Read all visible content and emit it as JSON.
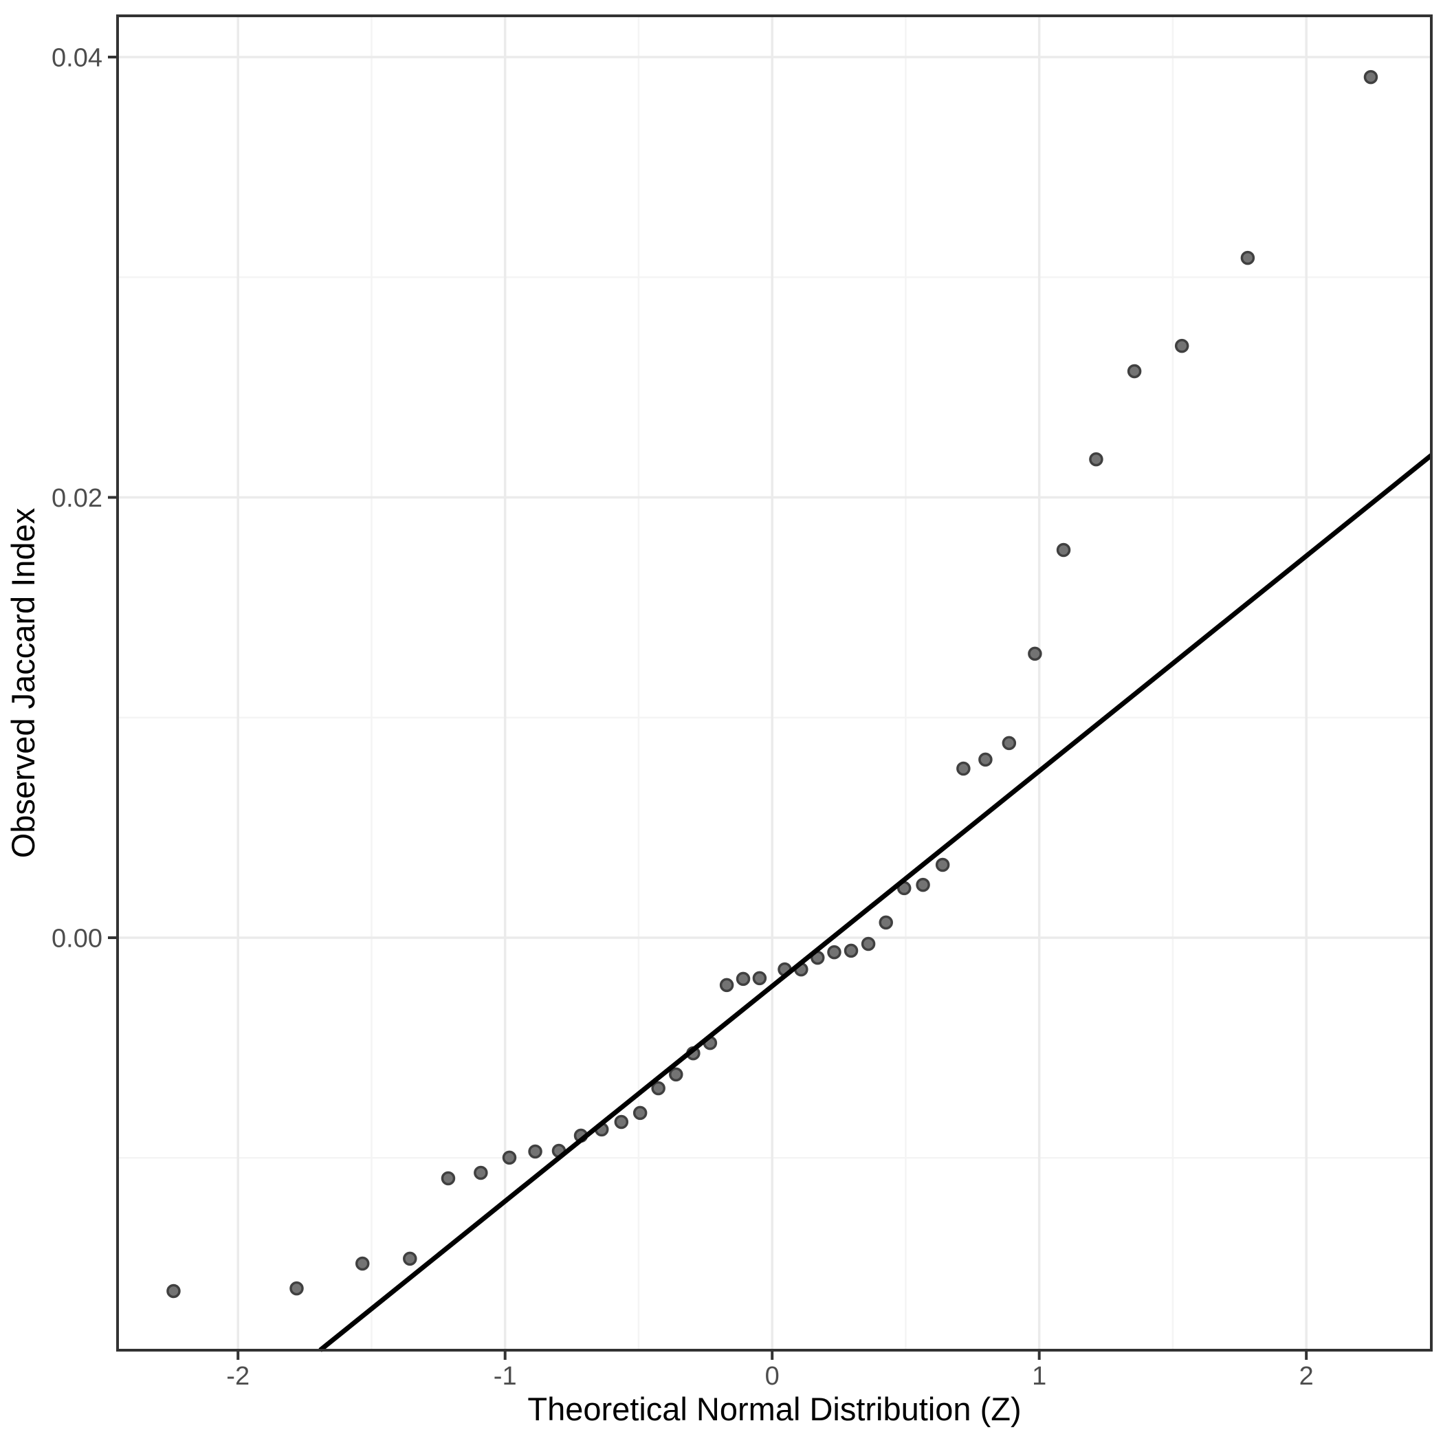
{
  "chart_data": {
    "type": "scatter",
    "title": "",
    "xlabel": "Theoretical Normal Distribution (Z)",
    "ylabel": "Observed Jaccard Index",
    "xlim": [
      -2.451,
      2.468
    ],
    "ylim": [
      -0.018736,
      0.041874
    ],
    "grid": "major+minor",
    "legend_position": "none",
    "x_major_ticks": [
      -2,
      -1,
      0,
      1,
      2
    ],
    "x_tick_labels": [
      "-2",
      "-1",
      "0",
      "1",
      "2"
    ],
    "x_minor_ticks": [
      -1.5,
      -0.5,
      0.5,
      1.5
    ],
    "y_major_ticks": [
      0,
      0.02,
      0.04
    ],
    "y_tick_labels": [
      "0.00",
      "0.02",
      "0.04"
    ],
    "y_minor_ticks": [
      -0.01,
      0.01,
      0.03
    ],
    "series": [
      {
        "name": "observed-quantiles",
        "type": "points",
        "x": [
          -2.2414,
          -1.7805,
          -1.5341,
          -1.3563,
          -1.213,
          -1.091,
          -0.9838,
          -0.8871,
          -0.7985,
          -0.716,
          -0.6383,
          -0.5647,
          -0.4943,
          -0.4261,
          -0.3601,
          -0.2956,
          -0.2324,
          -0.1701,
          -0.1085,
          -0.0471,
          0.0471,
          0.1085,
          0.1701,
          0.2324,
          0.2956,
          0.3601,
          0.4261,
          0.4943,
          0.5647,
          0.6383,
          0.716,
          0.7985,
          0.8871,
          0.9838,
          1.091,
          1.213,
          1.3563,
          1.5341,
          1.7805,
          2.2414
        ],
        "y": [
          -0.01605,
          -0.01593,
          -0.0148,
          -0.01458,
          -0.01093,
          -0.01068,
          -0.00999,
          -0.00971,
          -0.00968,
          -0.00899,
          -0.00871,
          -0.00837,
          -0.00796,
          -0.00684,
          -0.00621,
          -0.00525,
          -0.00478,
          -0.00215,
          -0.00187,
          -0.00184,
          -0.00144,
          -0.00144,
          -0.00091,
          -0.00066,
          -0.00059,
          -0.00028,
          0.00069,
          0.00225,
          0.0024,
          0.00331,
          0.00768,
          0.00809,
          0.00884,
          0.0129,
          0.01761,
          0.02173,
          0.02573,
          0.02688,
          0.03088,
          0.03909
        ]
      },
      {
        "name": "reference-line",
        "type": "abline",
        "slope": 0.00977,
        "intercept": -0.0022
      }
    ],
    "colors": {
      "background": "#ffffff",
      "panel_background": "#ffffff",
      "panel_border": "#333333",
      "grid_major": "#ebebeb",
      "grid_minor": "#f4f4f4",
      "tick_mark": "#333333",
      "tick_label": "#4d4d4d",
      "axis_title": "#000000",
      "point_fill": "#737373",
      "point_stroke": "#404040",
      "line": "#000000"
    }
  }
}
